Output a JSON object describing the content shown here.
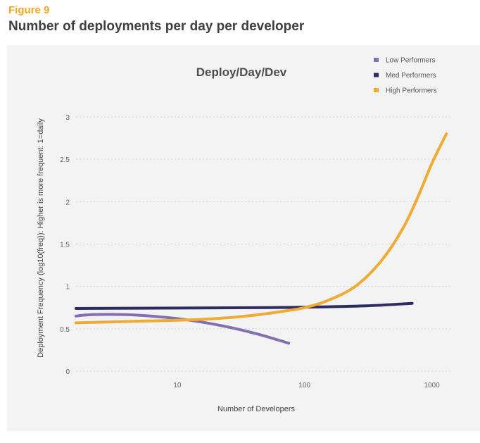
{
  "header": {
    "figure_label": "Figure 9",
    "title": "Number of deployments per day per developer"
  },
  "chart_data": {
    "type": "line",
    "title": "Deploy/Day/Dev",
    "xlabel": "Number of Developers",
    "ylabel": "Deployment Frequency  (log10(freq)): Higher is more frequent: 1=daily",
    "x_scale": "log",
    "xlim": [
      1.6,
      1400
    ],
    "ylim": [
      0,
      3
    ],
    "x_ticks": [
      10,
      100,
      1000
    ],
    "x_tick_labels": [
      "10",
      "100",
      "1000"
    ],
    "y_ticks": [
      0,
      0.5,
      1,
      1.5,
      2,
      2.5,
      3
    ],
    "y_tick_labels": [
      "0",
      "0.5",
      "1",
      "1.5",
      "2",
      "2.5",
      "3"
    ],
    "grid": true,
    "legend_position": "top-right",
    "series": [
      {
        "name": "Low Performers",
        "color": "#8370B0",
        "x": [
          1.6,
          2,
          3,
          5,
          10,
          20,
          40,
          75
        ],
        "y": [
          0.65,
          0.665,
          0.67,
          0.66,
          0.62,
          0.55,
          0.45,
          0.33
        ]
      },
      {
        "name": "Med Performers",
        "color": "#2E2A62",
        "x": [
          1.6,
          10,
          50,
          100,
          300,
          700
        ],
        "y": [
          0.74,
          0.745,
          0.75,
          0.755,
          0.77,
          0.8
        ]
      },
      {
        "name": "High Performers",
        "color": "#F0AB35",
        "x": [
          1.6,
          5,
          10,
          20,
          40,
          70,
          100,
          150,
          250,
          400,
          600,
          800,
          1000,
          1300
        ],
        "y": [
          0.57,
          0.59,
          0.6,
          0.62,
          0.66,
          0.71,
          0.75,
          0.83,
          1.0,
          1.3,
          1.7,
          2.1,
          2.45,
          2.8
        ]
      }
    ]
  }
}
